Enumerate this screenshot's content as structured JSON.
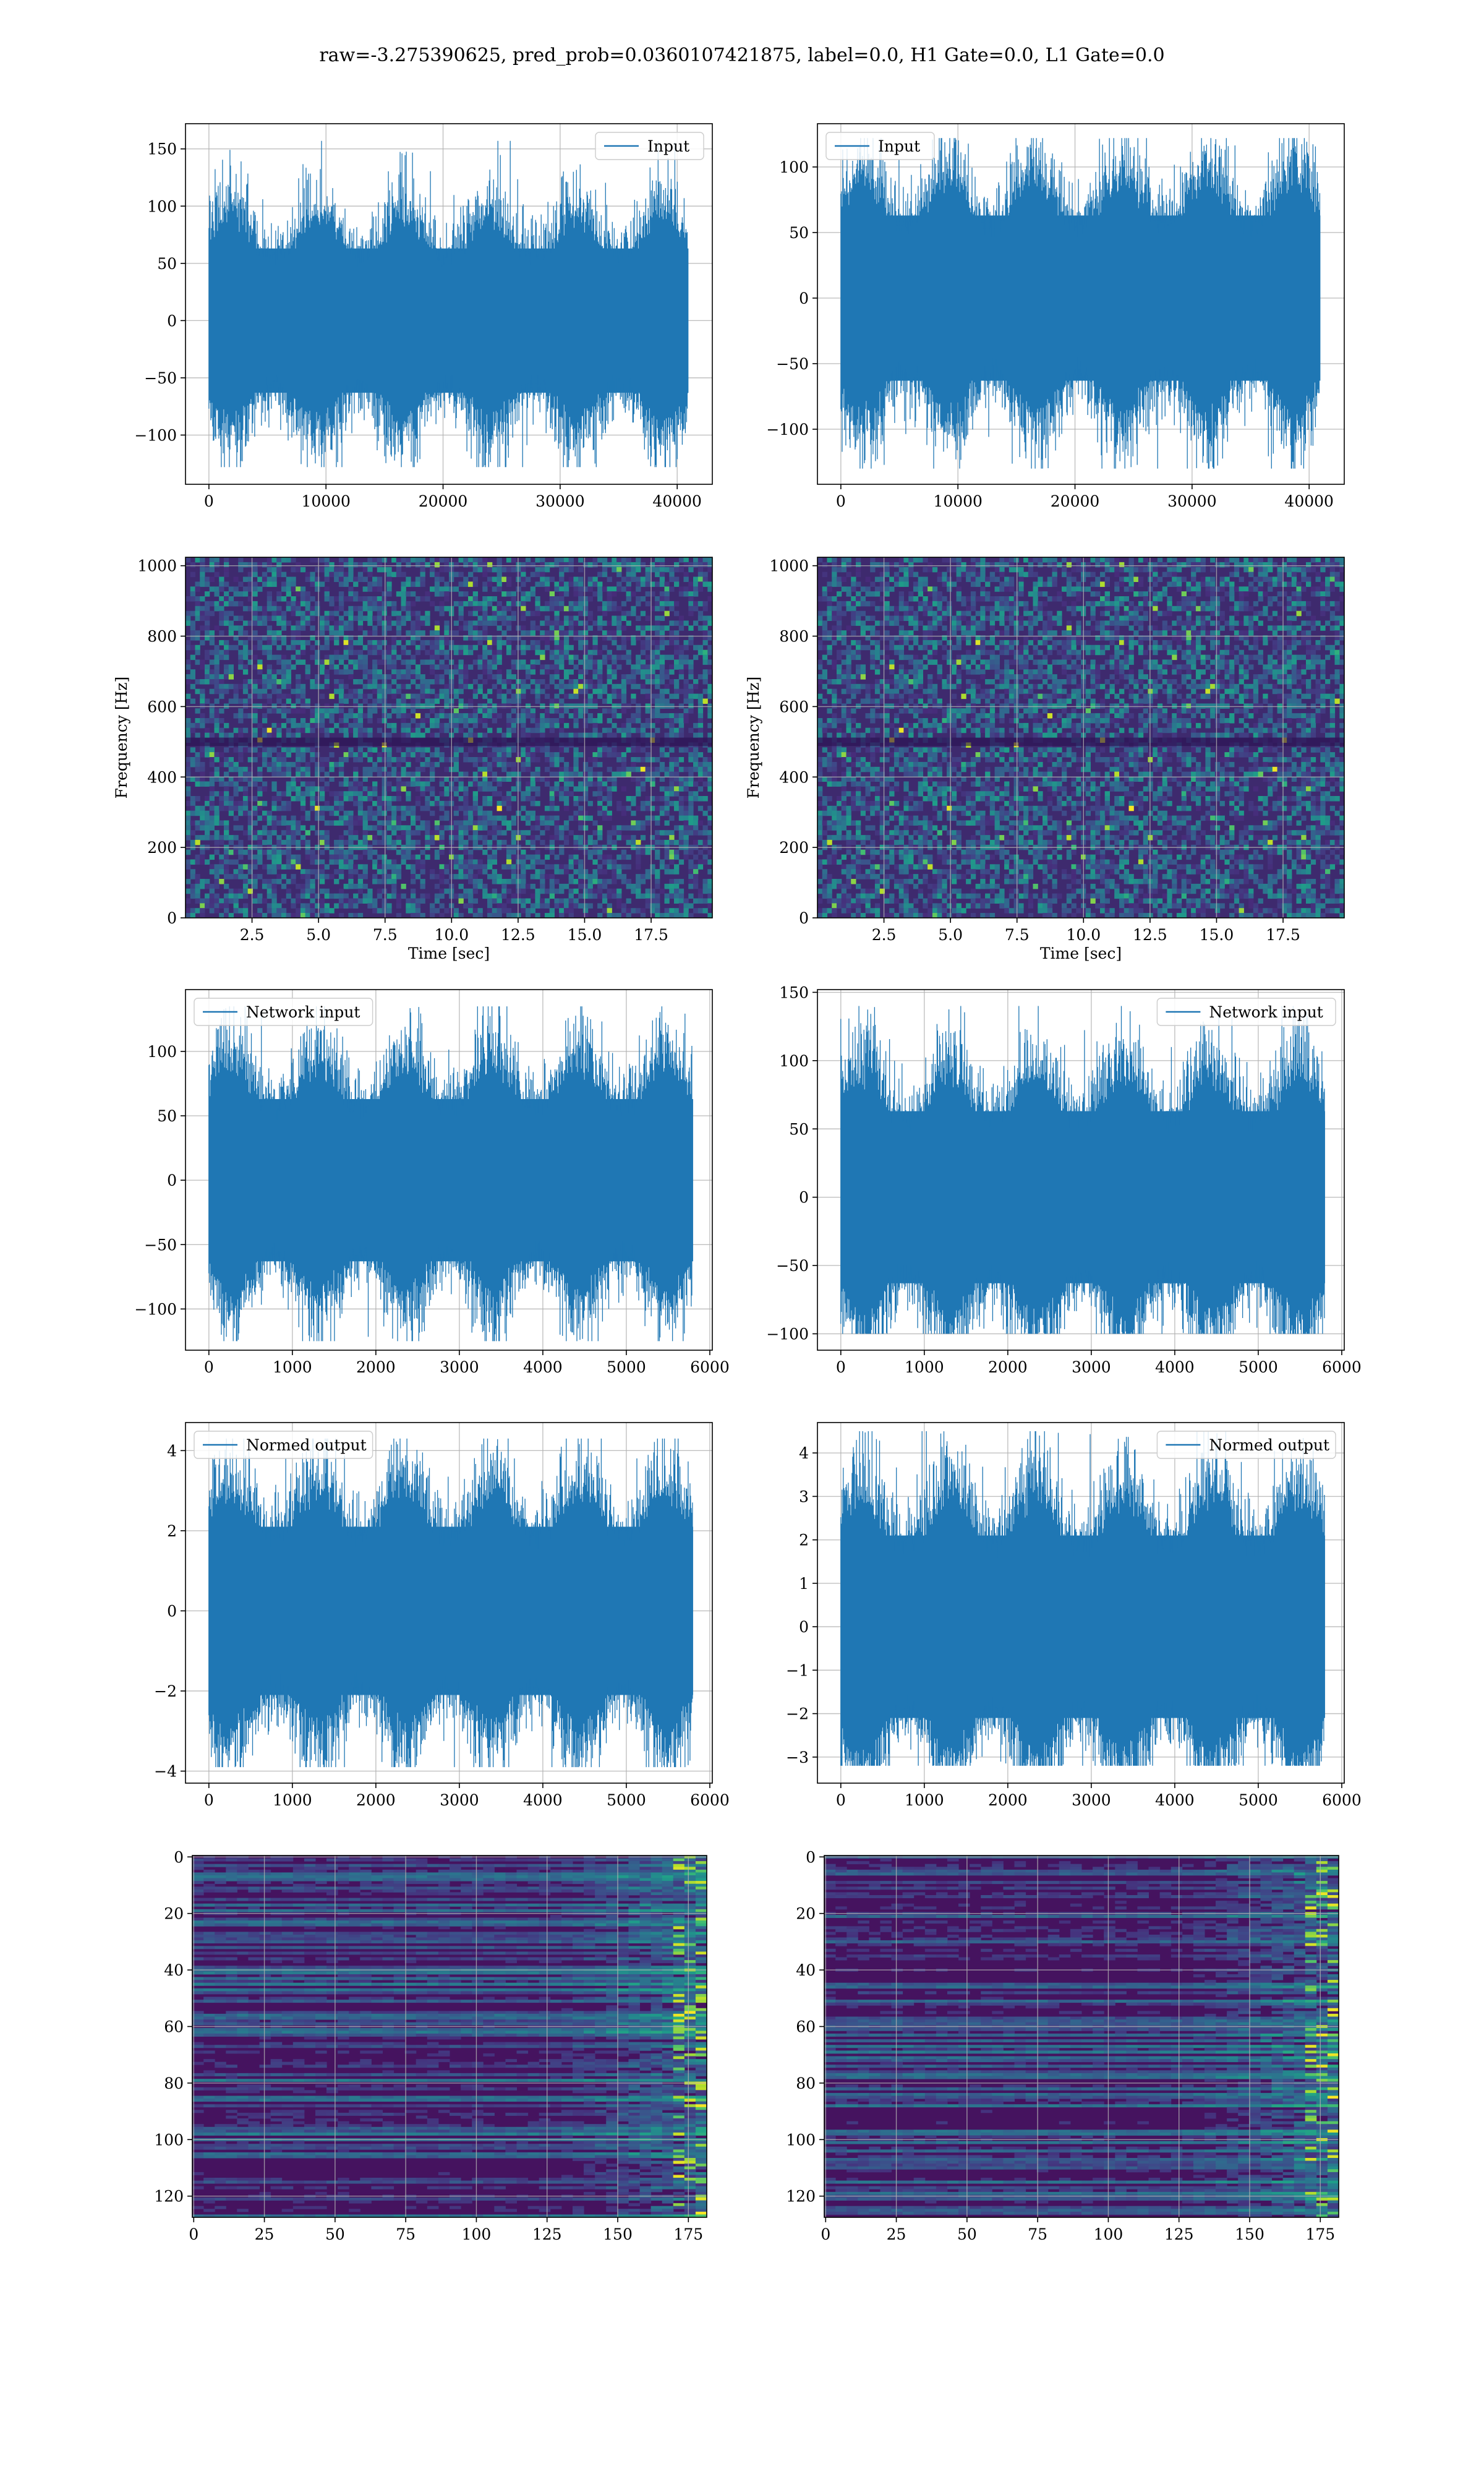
{
  "suptitle": "raw=-3.275390625, pred_prob=0.0360107421875, label=0.0, H1 Gate=0.0, L1 Gate=0.0",
  "colors": {
    "line": "#1f77b4",
    "grid": "#b0b0b0",
    "viridis_dark": "#440154",
    "viridis_blue": "#3b528b",
    "viridis_teal": "#21918c",
    "viridis_green": "#5ec962",
    "viridis_yellow": "#fde725"
  },
  "chart_data": [
    {
      "id": "h1-input",
      "type": "line",
      "legend": [
        "Input"
      ],
      "legend_loc": "upper right",
      "series": [
        {
          "name": "Input",
          "n_points": 40960,
          "mean": 0,
          "std": 30,
          "min": -128,
          "max": 157
        }
      ],
      "xlim": [
        -2000,
        43000
      ],
      "ylim": [
        -143,
        172
      ],
      "xticks": [
        0,
        10000,
        20000,
        30000,
        40000
      ],
      "yticks": [
        -100,
        -50,
        0,
        50,
        100,
        150
      ],
      "grid": true
    },
    {
      "id": "l1-input",
      "type": "line",
      "legend": [
        "Input"
      ],
      "legend_loc": "upper left",
      "series": [
        {
          "name": "Input",
          "n_points": 40960,
          "mean": 0,
          "std": 30,
          "min": -130,
          "max": 122
        }
      ],
      "xlim": [
        -2000,
        43000
      ],
      "ylim": [
        -142,
        133
      ],
      "xticks": [
        0,
        10000,
        20000,
        30000,
        40000
      ],
      "yticks": [
        -100,
        -50,
        0,
        50,
        100
      ],
      "grid": true
    },
    {
      "id": "h1-spectrogram",
      "type": "heatmap",
      "xlabel": "Time [sec]",
      "ylabel": "Frequency [Hz]",
      "xlim": [
        0,
        19.8
      ],
      "ylim": [
        0,
        1024
      ],
      "xticks": [
        "2.5",
        "5.0",
        "7.5",
        "10.0",
        "12.5",
        "15.0",
        "17.5"
      ],
      "yticks": [
        "0",
        "200",
        "400",
        "600",
        "800",
        "1000"
      ],
      "colormap": "viridis",
      "grid": true
    },
    {
      "id": "l1-spectrogram",
      "type": "heatmap",
      "xlabel": "Time [sec]",
      "ylabel": "Frequency [Hz]",
      "xlim": [
        0,
        19.8
      ],
      "ylim": [
        0,
        1024
      ],
      "xticks": [
        "2.5",
        "5.0",
        "7.5",
        "10.0",
        "12.5",
        "15.0",
        "17.5"
      ],
      "yticks": [
        "0",
        "200",
        "400",
        "600",
        "800",
        "1000"
      ],
      "colormap": "viridis",
      "grid": true
    },
    {
      "id": "h1-network-input",
      "type": "line",
      "legend": [
        "Network input"
      ],
      "legend_loc": "upper left",
      "series": [
        {
          "name": "Network input",
          "n_points": 5800,
          "mean": 0,
          "std": 30,
          "min": -125,
          "max": 135
        }
      ],
      "xlim": [
        -280,
        6030
      ],
      "ylim": [
        -132,
        148
      ],
      "xticks": [
        0,
        1000,
        2000,
        3000,
        4000,
        5000,
        6000
      ],
      "yticks": [
        -100,
        -50,
        0,
        50,
        100
      ],
      "grid": true
    },
    {
      "id": "l1-network-input",
      "type": "line",
      "legend": [
        "Network input"
      ],
      "legend_loc": "upper right",
      "series": [
        {
          "name": "Network input",
          "n_points": 5800,
          "mean": 0,
          "std": 30,
          "min": -100,
          "max": 140
        }
      ],
      "xlim": [
        -280,
        6030
      ],
      "ylim": [
        -112,
        152
      ],
      "xticks": [
        0,
        1000,
        2000,
        3000,
        4000,
        5000,
        6000
      ],
      "yticks": [
        -100,
        -50,
        0,
        50,
        100,
        150
      ],
      "grid": true
    },
    {
      "id": "h1-normed-output",
      "type": "line",
      "legend": [
        "Normed output"
      ],
      "legend_loc": "upper left",
      "series": [
        {
          "name": "Normed output",
          "n_points": 5800,
          "mean": 0,
          "std": 1,
          "min": -3.9,
          "max": 4.3
        }
      ],
      "xlim": [
        -280,
        6030
      ],
      "ylim": [
        -4.3,
        4.7
      ],
      "xticks": [
        0,
        1000,
        2000,
        3000,
        4000,
        5000,
        6000
      ],
      "yticks": [
        -4,
        -2,
        0,
        2,
        4
      ],
      "grid": true
    },
    {
      "id": "l1-normed-output",
      "type": "line",
      "legend": [
        "Normed output"
      ],
      "legend_loc": "upper right",
      "series": [
        {
          "name": "Normed output",
          "n_points": 5800,
          "mean": 0,
          "std": 1,
          "min": -3.2,
          "max": 4.5
        }
      ],
      "xlim": [
        -280,
        6030
      ],
      "ylim": [
        -3.6,
        4.7
      ],
      "xticks": [
        0,
        1000,
        2000,
        3000,
        4000,
        5000,
        6000
      ],
      "yticks": [
        -3,
        -2,
        -1,
        0,
        1,
        2,
        3,
        4
      ],
      "grid": true
    },
    {
      "id": "h1-feature-map",
      "type": "heatmap",
      "rows": 128,
      "cols": 182,
      "xlim": [
        -0.5,
        181.5
      ],
      "ylim": [
        127.5,
        -0.5
      ],
      "xticks": [
        0,
        25,
        50,
        75,
        100,
        125,
        150,
        175
      ],
      "yticks": [
        0,
        20,
        40,
        60,
        80,
        100,
        120
      ],
      "colormap": "viridis",
      "grid": true
    },
    {
      "id": "l1-feature-map",
      "type": "heatmap",
      "rows": 128,
      "cols": 182,
      "xlim": [
        -0.5,
        181.5
      ],
      "ylim": [
        127.5,
        -0.5
      ],
      "xticks": [
        0,
        25,
        50,
        75,
        100,
        125,
        150,
        175
      ],
      "yticks": [
        0,
        20,
        40,
        60,
        80,
        100,
        120
      ],
      "colormap": "viridis",
      "grid": true
    }
  ]
}
